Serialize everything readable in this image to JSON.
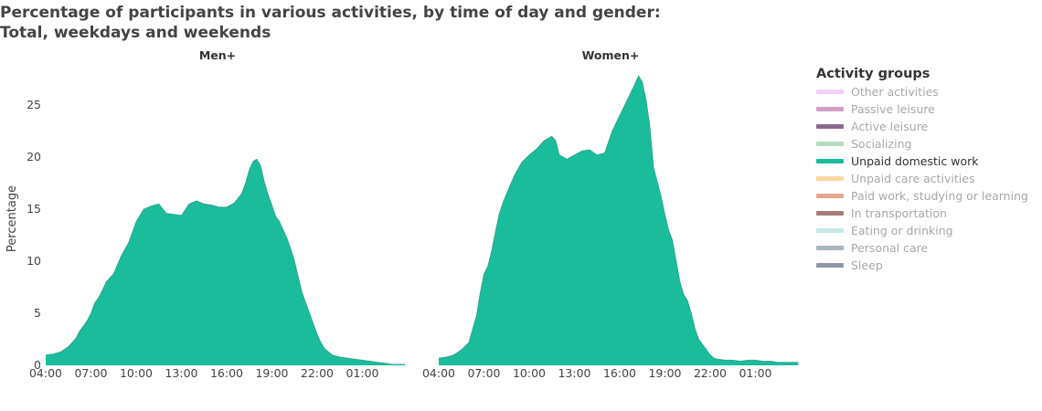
{
  "title_lines": [
    "Percentage of participants in various activities, by time of day and gender:",
    "Total, weekdays and weekends"
  ],
  "colors": {
    "area": "#1abc9c",
    "edge": "#0f7a65",
    "inactive_text": "#a8a8a8",
    "active_text": "#333333"
  },
  "legend": {
    "title": "Activity groups",
    "items": [
      {
        "label": "Other activities",
        "color": "#f3d0f5",
        "active": false
      },
      {
        "label": "Passive leisure",
        "color": "#d39fc7",
        "active": false
      },
      {
        "label": "Active leisure",
        "color": "#8a6a8c",
        "active": false
      },
      {
        "label": "Socializing",
        "color": "#b5dcbd",
        "active": false
      },
      {
        "label": "Unpaid domestic work",
        "color": "#1abc9c",
        "active": true
      },
      {
        "label": "Unpaid care activities",
        "color": "#fbd9a2",
        "active": false
      },
      {
        "label": "Paid work, studying or learning",
        "color": "#e2a890",
        "active": false
      },
      {
        "label": "In transportation",
        "color": "#a87a7a",
        "active": false
      },
      {
        "label": "Eating or drinking",
        "color": "#c3eae8",
        "active": false
      },
      {
        "label": "Personal care",
        "color": "#a8b8bd",
        "active": false
      },
      {
        "label": "Sleep",
        "color": "#8f95a8",
        "active": false
      }
    ]
  },
  "chart_data": [
    {
      "type": "area",
      "title": "Men+",
      "ylabel": "Percentage",
      "ylim": [
        0,
        28.5
      ],
      "xlim_hours": [
        4,
        28
      ],
      "x_ticks": [
        "04:00",
        "07:00",
        "10:00",
        "13:00",
        "16:00",
        "19:00",
        "22:00",
        "01:00"
      ],
      "y_ticks": [
        0,
        5,
        10,
        15,
        20,
        25
      ],
      "series": [
        {
          "x": [
            "04:00",
            "04:30",
            "05:00",
            "05:30",
            "06:00",
            "06:15",
            "06:30",
            "06:45",
            "07:00",
            "07:15",
            "07:30",
            "07:45",
            "08:00",
            "08:30",
            "09:00",
            "09:30",
            "10:00",
            "10:30",
            "11:00",
            "11:30",
            "12:00",
            "12:30",
            "13:00",
            "13:30",
            "14:00",
            "14:30",
            "15:00",
            "15:30",
            "16:00",
            "16:30",
            "17:00",
            "17:15",
            "17:30",
            "17:45",
            "18:00",
            "18:15",
            "18:30",
            "18:45",
            "19:00",
            "19:15",
            "19:30",
            "19:45",
            "20:00",
            "20:15",
            "20:30",
            "20:45",
            "21:00",
            "21:15",
            "21:30",
            "21:45",
            "22:00",
            "22:15",
            "22:30",
            "22:45",
            "23:00",
            "23:30",
            "00:00",
            "00:30",
            "01:00",
            "01:30",
            "02:00",
            "02:30",
            "03:00",
            "03:50"
          ],
          "y": [
            1.0,
            1.1,
            1.3,
            1.8,
            2.6,
            3.3,
            3.8,
            4.3,
            5.0,
            6.0,
            6.5,
            7.2,
            8.0,
            8.8,
            10.5,
            11.8,
            13.8,
            15.0,
            15.3,
            15.5,
            14.6,
            14.5,
            14.4,
            15.5,
            15.8,
            15.5,
            15.4,
            15.2,
            15.2,
            15.6,
            16.5,
            17.5,
            18.8,
            19.6,
            19.8,
            19.2,
            17.6,
            16.4,
            15.4,
            14.3,
            13.8,
            13.0,
            12.2,
            11.2,
            10.0,
            8.5,
            7.0,
            6.0,
            5.0,
            4.0,
            3.0,
            2.2,
            1.6,
            1.3,
            1.0,
            0.8,
            0.7,
            0.6,
            0.5,
            0.4,
            0.3,
            0.2,
            0.1,
            0.1
          ]
        }
      ]
    },
    {
      "type": "area",
      "title": "Women+",
      "ylim": [
        0,
        28.5
      ],
      "xlim_hours": [
        4,
        28
      ],
      "x_ticks": [
        "04:00",
        "07:00",
        "10:00",
        "13:00",
        "16:00",
        "19:00",
        "22:00",
        "01:00"
      ],
      "series": [
        {
          "x": [
            "04:00",
            "04:30",
            "05:00",
            "05:30",
            "06:00",
            "06:15",
            "06:30",
            "06:45",
            "07:00",
            "07:15",
            "07:30",
            "07:45",
            "08:00",
            "08:15",
            "08:30",
            "09:00",
            "09:30",
            "10:00",
            "10:30",
            "11:00",
            "11:30",
            "11:45",
            "12:00",
            "12:30",
            "13:00",
            "13:30",
            "14:00",
            "14:30",
            "15:00",
            "15:30",
            "16:00",
            "16:30",
            "17:00",
            "17:15",
            "17:30",
            "17:45",
            "18:00",
            "18:15",
            "18:30",
            "18:45",
            "19:00",
            "19:15",
            "19:30",
            "19:45",
            "20:00",
            "20:15",
            "20:30",
            "20:45",
            "21:00",
            "21:15",
            "21:30",
            "21:45",
            "22:00",
            "22:15",
            "22:30",
            "23:00",
            "23:30",
            "00:00",
            "00:30",
            "01:00",
            "01:30",
            "02:00",
            "02:30",
            "03:00",
            "03:50"
          ],
          "y": [
            0.7,
            0.8,
            1.0,
            1.5,
            2.2,
            3.5,
            4.8,
            7.0,
            8.8,
            9.5,
            11.0,
            12.8,
            14.5,
            15.6,
            16.5,
            18.2,
            19.5,
            20.2,
            20.8,
            21.6,
            22.0,
            21.6,
            20.2,
            19.8,
            20.2,
            20.6,
            20.7,
            20.2,
            20.4,
            22.5,
            24.0,
            25.5,
            27.0,
            27.8,
            27.2,
            25.5,
            23.0,
            19.0,
            17.6,
            16.2,
            14.5,
            13.0,
            12.0,
            10.0,
            8.0,
            6.8,
            6.2,
            5.0,
            3.5,
            2.5,
            2.0,
            1.5,
            1.0,
            0.7,
            0.6,
            0.5,
            0.5,
            0.4,
            0.5,
            0.5,
            0.4,
            0.4,
            0.3,
            0.3,
            0.3
          ]
        }
      ]
    }
  ]
}
